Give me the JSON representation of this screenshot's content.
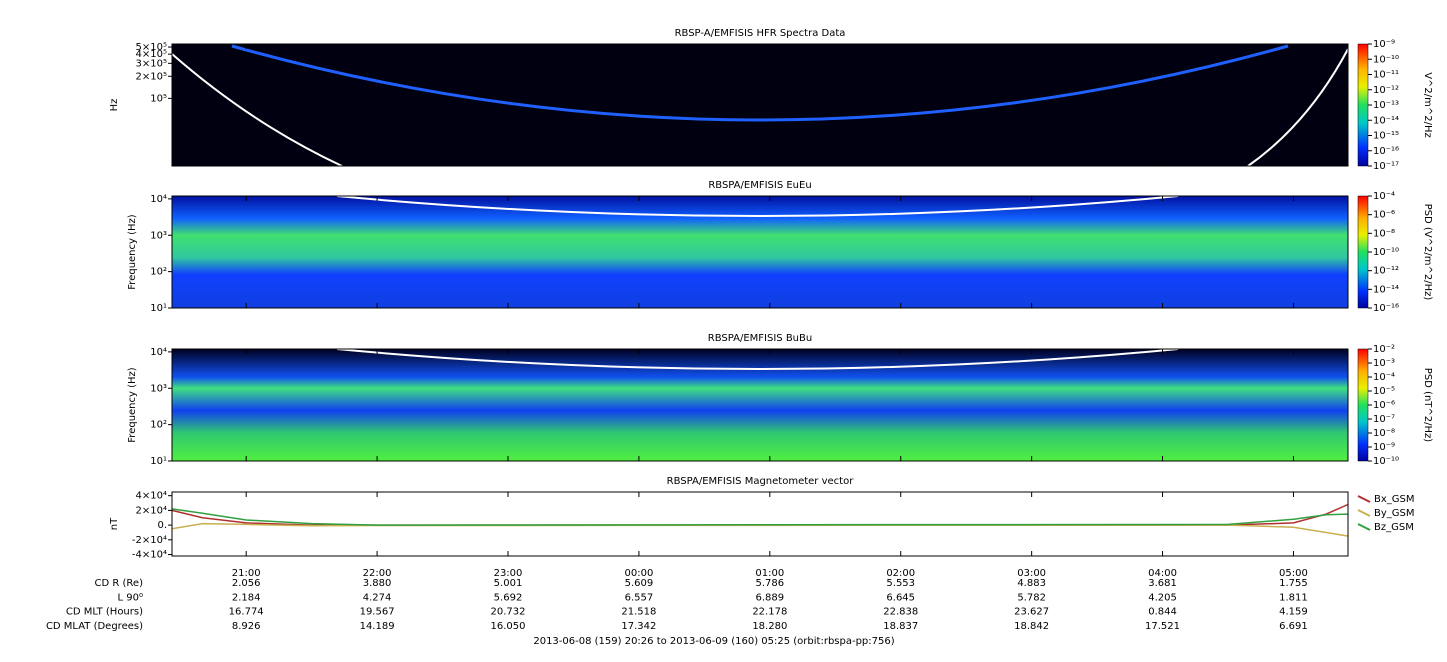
{
  "chart_data": [
    {
      "type": "spectrogram",
      "title": "RBSP-A/EMFISIS  HFR Spectra Data",
      "ylabel": "Hz",
      "log_y": true,
      "ylim": [
        12000,
        550000
      ],
      "yticks": [
        {
          "value": 500000,
          "label": "5×10⁵"
        },
        {
          "value": 400000,
          "label": "4×10⁵"
        },
        {
          "value": 300000,
          "label": "3×10⁵"
        },
        {
          "value": 200000,
          "label": "2×10⁵"
        },
        {
          "value": 100000,
          "label": "10⁵"
        }
      ],
      "colorbar": {
        "label": "V^2/m^2/Hz",
        "zlim": [
          1e-09,
          1e-17
        ],
        "ticks": [
          {
            "value": 1e-09,
            "label": "10⁻⁹"
          },
          {
            "value": 1e-10,
            "label": "10⁻¹⁰"
          },
          {
            "value": 1e-11,
            "label": "10⁻¹¹"
          },
          {
            "value": 1e-12,
            "label": "10⁻¹²"
          },
          {
            "value": 1e-13,
            "label": "10⁻¹³"
          },
          {
            "value": 1e-14,
            "label": "10⁻¹⁴"
          },
          {
            "value": 1e-15,
            "label": "10⁻¹⁵"
          },
          {
            "value": 1e-16,
            "label": "10⁻¹⁶"
          },
          {
            "value": 1e-17,
            "label": "10⁻¹⁷"
          }
        ]
      }
    },
    {
      "type": "spectrogram",
      "title": "RBSPA/EMFISIS  EuEu",
      "ylabel": "Frequency (Hz)",
      "log_y": true,
      "ylim": [
        10,
        12000
      ],
      "yticks": [
        {
          "value": 10,
          "label": "10¹"
        },
        {
          "value": 100,
          "label": "10²"
        },
        {
          "value": 1000,
          "label": "10³"
        },
        {
          "value": 10000,
          "label": "10⁴"
        }
      ],
      "colorbar": {
        "label": "PSD (V^2/m^2/Hz)",
        "zlim": [
          0.0001,
          1e-16
        ],
        "ticks": [
          {
            "value": 0.0001,
            "label": "10⁻⁴"
          },
          {
            "value": 1e-06,
            "label": "10⁻⁶"
          },
          {
            "value": 1e-08,
            "label": "10⁻⁸"
          },
          {
            "value": 1e-10,
            "label": "10⁻¹⁰"
          },
          {
            "value": 1e-12,
            "label": "10⁻¹²"
          },
          {
            "value": 1e-14,
            "label": "10⁻¹⁴"
          },
          {
            "value": 1e-16,
            "label": "10⁻¹⁶"
          }
        ]
      }
    },
    {
      "type": "spectrogram",
      "title": "RBSPA/EMFISIS  BuBu",
      "ylabel": "Frequency (Hz)",
      "log_y": true,
      "ylim": [
        10,
        12000
      ],
      "yticks": [
        {
          "value": 10,
          "label": "10¹"
        },
        {
          "value": 100,
          "label": "10²"
        },
        {
          "value": 1000,
          "label": "10³"
        },
        {
          "value": 10000,
          "label": "10⁴"
        }
      ],
      "colorbar": {
        "label": "PSD (nT^2/Hz)",
        "zlim": [
          0.01,
          1e-10
        ],
        "ticks": [
          {
            "value": 0.01,
            "label": "10⁻²"
          },
          {
            "value": 0.001,
            "label": "10⁻³"
          },
          {
            "value": 0.0001,
            "label": "10⁻⁴"
          },
          {
            "value": 1e-05,
            "label": "10⁻⁵"
          },
          {
            "value": 1e-06,
            "label": "10⁻⁶"
          },
          {
            "value": 1e-07,
            "label": "10⁻⁷"
          },
          {
            "value": 1e-08,
            "label": "10⁻⁸"
          },
          {
            "value": 1e-09,
            "label": "10⁻⁹"
          },
          {
            "value": 1e-10,
            "label": "10⁻¹⁰"
          }
        ]
      }
    },
    {
      "type": "line",
      "title": "RBSPA/EMFISIS  Magnetometer vector",
      "ylabel": "nT",
      "ylim": [
        -42000,
        45000
      ],
      "yticks": [
        {
          "value": 40000,
          "label": "4×10⁴"
        },
        {
          "value": 20000,
          "label": "2×10⁴"
        },
        {
          "value": 0,
          "label": "0."
        },
        {
          "value": -20000,
          "label": "-2×10⁴"
        },
        {
          "value": -40000,
          "label": "-4×10⁴"
        }
      ],
      "x": [
        "20:26",
        "20:40",
        "21:00",
        "21:30",
        "22:00",
        "04:30",
        "05:00",
        "05:15",
        "05:25"
      ],
      "series": [
        {
          "name": "Bx_GSM",
          "color": "#b03030",
          "values": [
            20000,
            10000,
            3000,
            0,
            0,
            0,
            3000,
            15000,
            28000
          ]
        },
        {
          "name": "By_GSM",
          "color": "#c8b050",
          "values": [
            -5000,
            2000,
            1000,
            -1000,
            -500,
            0,
            -3000,
            -10000,
            -15000
          ]
        },
        {
          "name": "Bz_GSM",
          "color": "#30a040",
          "values": [
            22000,
            16000,
            7000,
            2000,
            0,
            1000,
            8000,
            14000,
            15000
          ]
        }
      ]
    }
  ],
  "x_axis": {
    "xlim": [
      "20:26",
      "05:25"
    ],
    "xticks": [
      "21:00",
      "22:00",
      "23:00",
      "00:00",
      "01:00",
      "02:00",
      "03:00",
      "04:00",
      "05:00"
    ]
  },
  "ephemeris": [
    {
      "label": "CD R (Re)",
      "values": [
        "2.056",
        "3.880",
        "5.001",
        "5.609",
        "5.786",
        "5.553",
        "4.883",
        "3.681",
        "1.755"
      ]
    },
    {
      "label": "L 90⁰",
      "values": [
        "2.184",
        "4.274",
        "5.692",
        "6.557",
        "6.889",
        "6.645",
        "5.782",
        "4.205",
        "1.811"
      ]
    },
    {
      "label": "CD MLT (Hours)",
      "values": [
        "16.774",
        "19.567",
        "20.732",
        "21.518",
        "22.178",
        "22.838",
        "23.627",
        "0.844",
        "4.159"
      ]
    },
    {
      "label": "CD MLAT (Degrees)",
      "values": [
        "8.926",
        "14.189",
        "16.050",
        "17.342",
        "18.280",
        "18.837",
        "18.842",
        "17.521",
        "6.691"
      ]
    }
  ],
  "footer": "2013-06-08 (159) 20:26 to 2013-06-09 (160) 05:25 (orbit:rbspa-pp:756)"
}
